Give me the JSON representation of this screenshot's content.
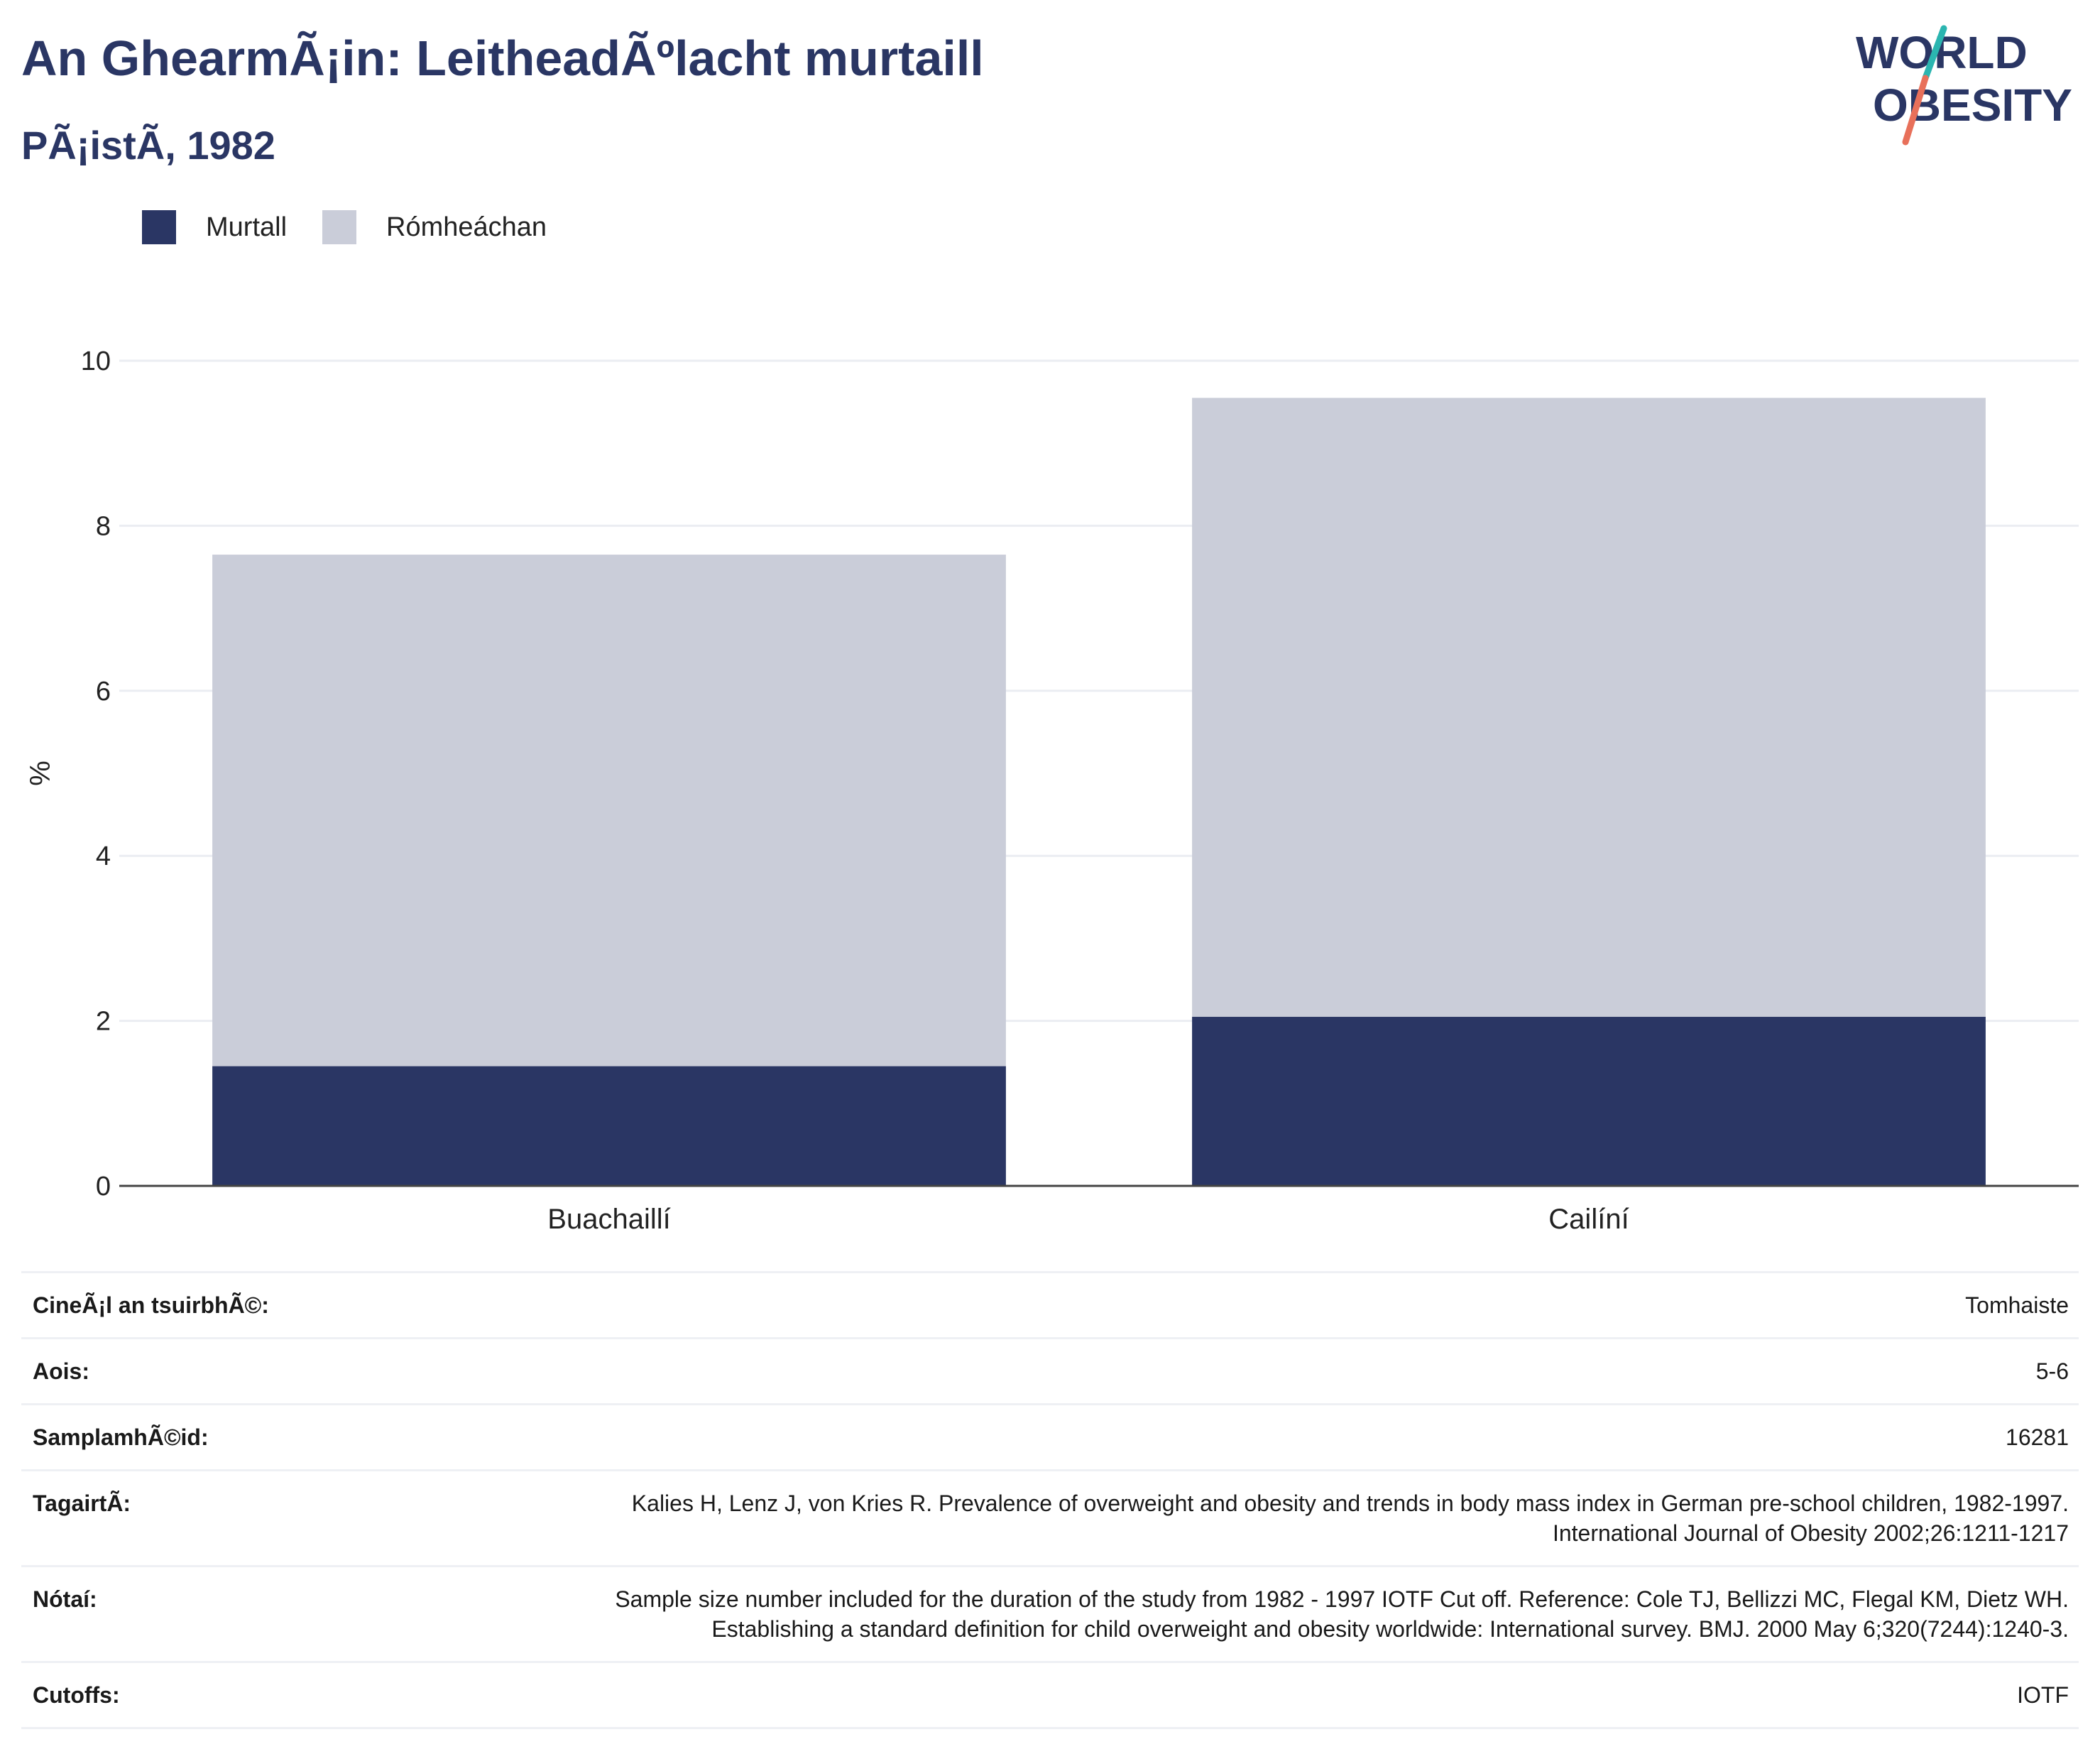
{
  "header": {
    "title": "An GhearmÃ¡in: LeitheadÃºlacht murtaill",
    "subtitle": "PÃ¡istÃ, 1982"
  },
  "logo": {
    "line1": "WORLD",
    "line2": "OBESITY",
    "text_color": "#2a3664",
    "accent_teal": "#2bb5b0",
    "accent_coral": "#e8705a"
  },
  "legend": {
    "items": [
      {
        "label": "Murtall",
        "color": "#2a3664"
      },
      {
        "label": "Rómheáchan",
        "color": "#cacdd9"
      }
    ]
  },
  "chart_data": {
    "type": "bar",
    "stacked": true,
    "categories": [
      "Buachaillí",
      "Cailíní"
    ],
    "series": [
      {
        "name": "Murtall",
        "color": "#2a3664",
        "values": [
          1.45,
          2.05
        ]
      },
      {
        "name": "Rómheáchan",
        "color": "#cacdd9",
        "values": [
          6.2,
          7.5
        ]
      }
    ],
    "ylabel": "%",
    "ylim": [
      0,
      10
    ],
    "yticks": [
      0,
      2,
      4,
      6,
      8,
      10
    ],
    "grid": true
  },
  "info": {
    "rows": [
      {
        "label": "CineÃ¡l an tsuirbhÃ©:",
        "value": "Tomhaiste"
      },
      {
        "label": "Aois:",
        "value": "5-6"
      },
      {
        "label": "SamplamhÃ©id:",
        "value": "16281"
      },
      {
        "label": "TagairtÃ:",
        "value": "Kalies H, Lenz J, von Kries R. Prevalence of overweight and obesity and trends in body mass index in German pre-school children, 1982-1997. International Journal of Obesity 2002;26:1211-1217"
      },
      {
        "label": "Nótaí:",
        "value": "Sample size number included for the duration of the study from 1982 - 1997 IOTF Cut off. Reference: Cole TJ, Bellizzi MC, Flegal KM, Dietz WH. Establishing a standard definition for child overweight and obesity worldwide: International survey. BMJ. 2000 May 6;320(7244):1240-3."
      },
      {
        "label": "Cutoffs:",
        "value": "IOTF"
      }
    ]
  }
}
